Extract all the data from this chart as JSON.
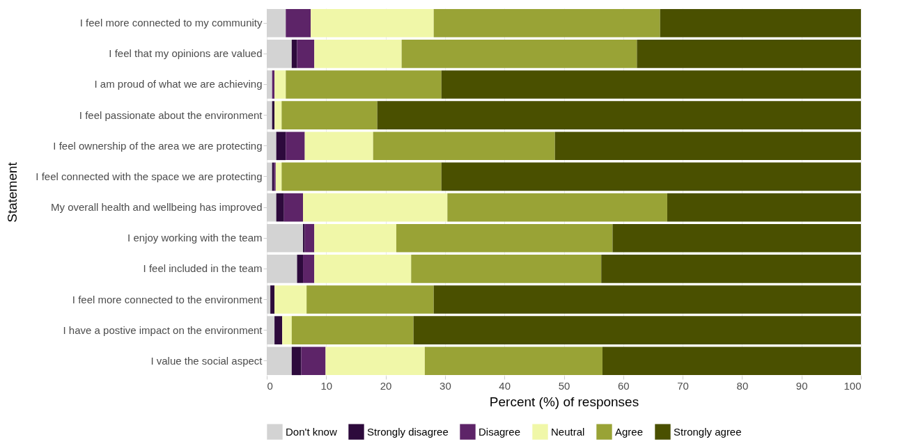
{
  "chart_data": {
    "type": "bar",
    "orientation": "horizontal",
    "stacked": true,
    "xlabel": "Percent (%) of responses",
    "ylabel": "Statement",
    "categories": [
      "I feel more connected to my community",
      "I feel that my opinions are valued",
      "I am proud of what we are achieving",
      "I feel passionate about the environment",
      "I feel ownership of the area we are protecting",
      "I feel connected with the space we are protecting",
      "My overall health and wellbeing has improved",
      "I enjoy working with the team",
      "I feel included in the team",
      "I feel more connected to the environment",
      "I have a postive impact on the environment",
      "I value the social aspect"
    ],
    "series": [
      {
        "name": "Don't know",
        "color": "#d3d3d3",
        "values": [
          3.2,
          4.2,
          0.9,
          0.9,
          1.6,
          0.9,
          1.6,
          6.1,
          5.1,
          0.6,
          1.3,
          4.2
        ]
      },
      {
        "name": "Strongly disagree",
        "color": "#2d0a3c",
        "values": [
          0,
          0.9,
          0,
          0.4,
          1.6,
          0.3,
          1.3,
          0.3,
          1.0,
          0.7,
          1.3,
          1.6
        ]
      },
      {
        "name": "Disagree",
        "color": "#5d2468",
        "values": [
          4.2,
          2.9,
          0.4,
          0,
          3.2,
          0.3,
          3.2,
          1.6,
          1.9,
          0,
          0,
          4.1
        ]
      },
      {
        "name": "Neutral",
        "color": "#f0f7a8",
        "values": [
          20.7,
          14.7,
          1.9,
          1.2,
          11.5,
          1.0,
          24.3,
          13.8,
          16.3,
          5.4,
          1.6,
          16.7
        ]
      },
      {
        "name": "Agree",
        "color": "#99a336",
        "values": [
          38.1,
          39.6,
          26.2,
          16.1,
          30.6,
          26.9,
          37.0,
          36.4,
          32.0,
          21.4,
          20.5,
          29.9
        ]
      },
      {
        "name": "Strongly agree",
        "color": "#4a5000",
        "values": [
          33.8,
          37.7,
          70.6,
          81.4,
          51.5,
          70.6,
          32.6,
          41.8,
          43.7,
          71.9,
          75.3,
          43.5
        ]
      }
    ],
    "xlim": [
      0,
      100
    ],
    "xticks": [
      0,
      10,
      20,
      30,
      40,
      50,
      60,
      70,
      80,
      90,
      100
    ],
    "grid": "x",
    "legend": "bottom"
  }
}
